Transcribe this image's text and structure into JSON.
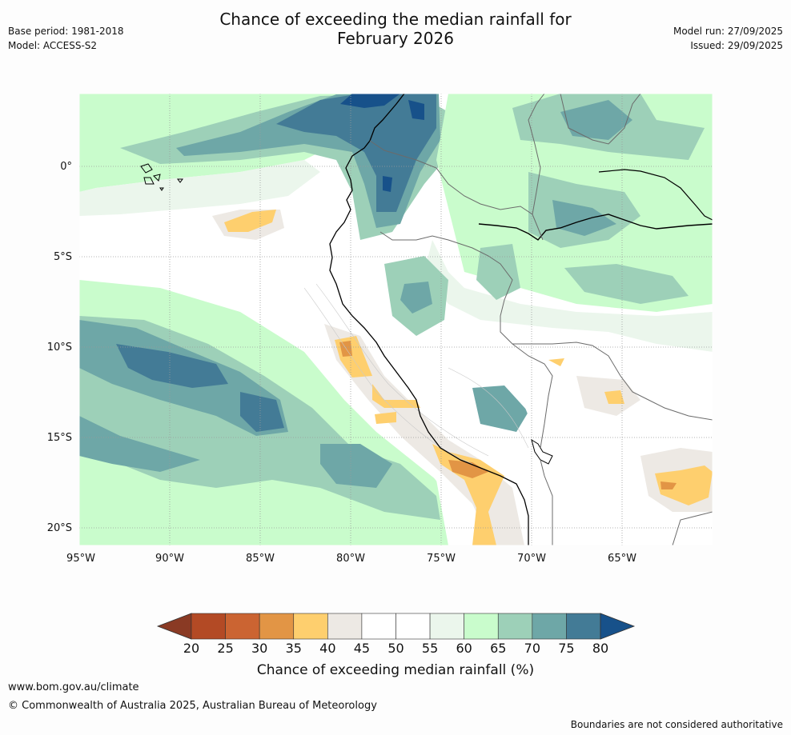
{
  "header": {
    "title_line1": "Chance of exceeding the median rainfall for",
    "title_line2": "February 2026",
    "base_period": "Base period: 1981-2018",
    "model": "Model: ACCESS-S2",
    "model_run": "Model run: 27/09/2025",
    "issued": "Issued: 29/09/2025"
  },
  "map": {
    "lon_ticks": [
      "95°W",
      "90°W",
      "85°W",
      "80°W",
      "75°W",
      "70°W",
      "65°W"
    ],
    "lat_ticks": [
      "0°",
      "5°S",
      "10°S",
      "15°S",
      "20°S"
    ],
    "colors": {
      "c20_25": "#b34a25",
      "c25_30": "#cb6432",
      "c30_35": "#e29545",
      "c35_40": "#fecf6e",
      "c40_45": "#ede9e4",
      "c45_50": "#ffffff",
      "c50_55": "#ffffff",
      "c55_60": "#ebf6ec",
      "c60_65": "#c9fccc",
      "c65_70": "#9dd0b8",
      "c70_75": "#6ea7a7",
      "c75_80": "#437b96",
      "c80plus": "#17518a"
    }
  },
  "colorbar": {
    "labels": [
      "20",
      "25",
      "30",
      "35",
      "40",
      "45",
      "50",
      "55",
      "60",
      "65",
      "70",
      "75",
      "80"
    ],
    "colors": [
      "#b34a25",
      "#cb6432",
      "#e29545",
      "#fecf6e",
      "#ede9e4",
      "#ffffff",
      "#ffffff",
      "#ebf6ec",
      "#c9fccc",
      "#9dd0b8",
      "#6ea7a7",
      "#437b96"
    ],
    "under_color": "#8a3a24",
    "over_color": "#17518a",
    "title": "Chance of exceeding median rainfall (%)"
  },
  "footer": {
    "url": "www.bom.gov.au/climate",
    "copyright": "© Commonwealth of Australia 2025, Australian Bureau of Meteorology",
    "disclaimer": "Boundaries are not considered authoritative"
  }
}
